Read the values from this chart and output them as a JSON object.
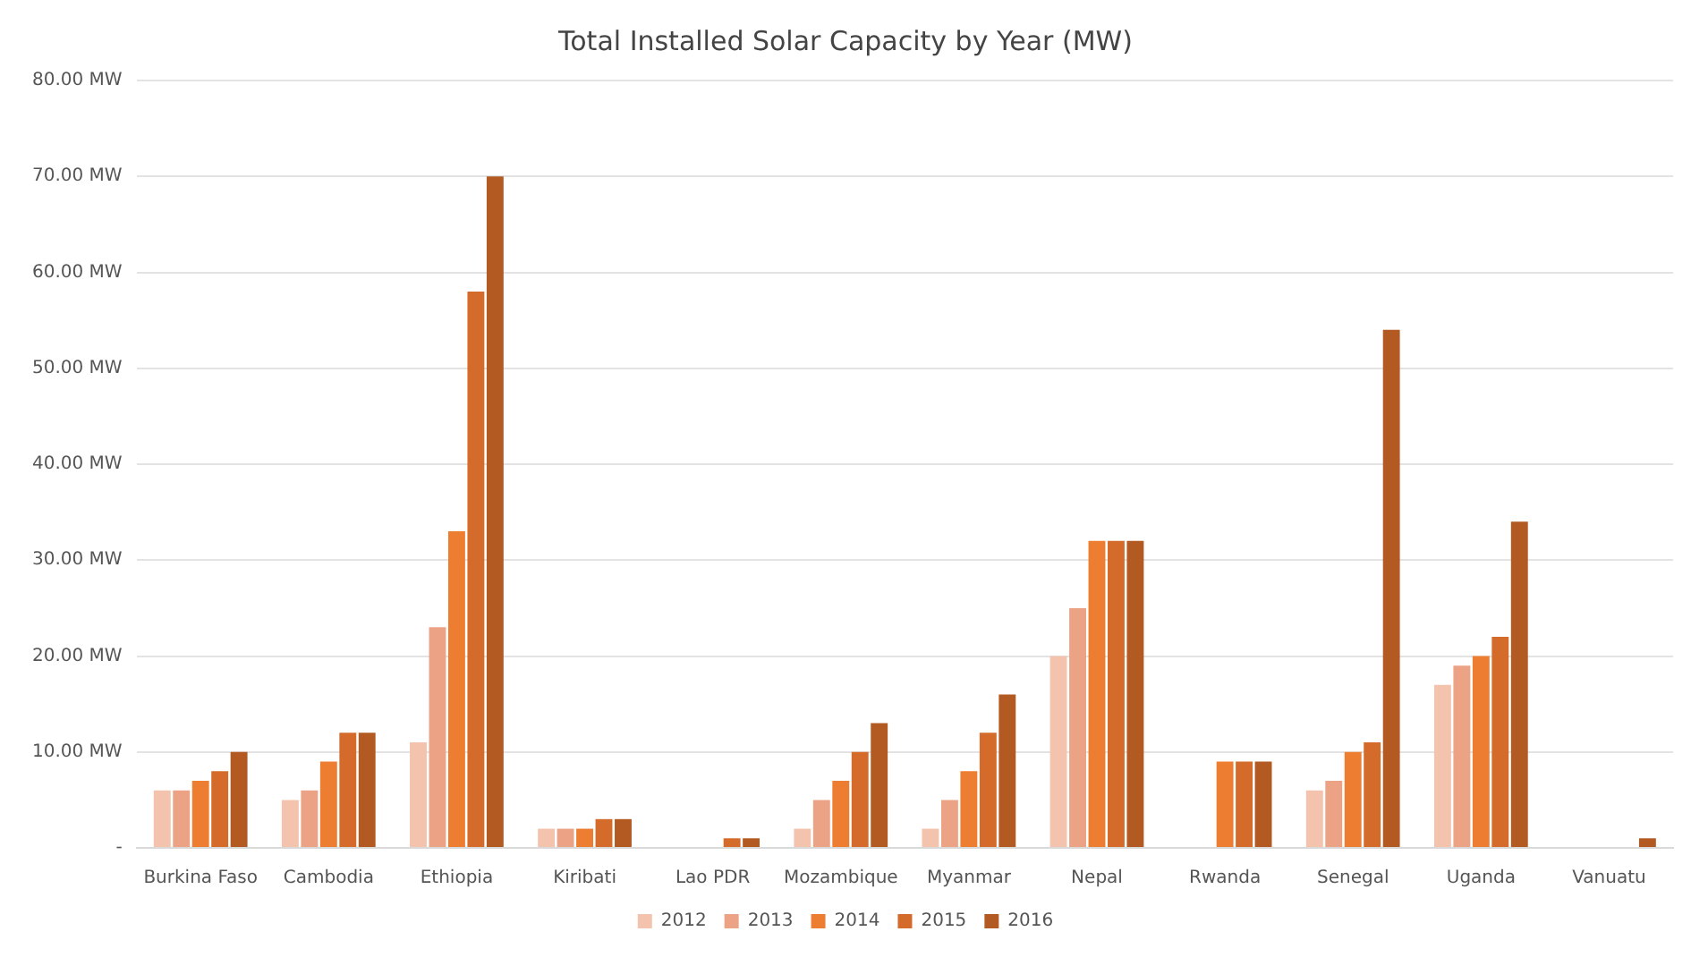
{
  "chart_data": {
    "type": "bar",
    "title": "Total Installed Solar Capacity by Year (MW)",
    "categories": [
      "Burkina Faso",
      "Cambodia",
      "Ethiopia",
      "Kiribati",
      "Lao PDR",
      "Mozambique",
      "Myanmar",
      "Nepal",
      "Rwanda",
      "Senegal",
      "Uganda",
      "Vanuatu"
    ],
    "series": [
      {
        "name": "2012",
        "color": "#f3c3ad",
        "values": [
          6,
          5,
          11,
          2,
          null,
          2,
          2,
          20,
          null,
          6,
          17,
          null
        ]
      },
      {
        "name": "2013",
        "color": "#eca285",
        "values": [
          6,
          6,
          23,
          2,
          null,
          5,
          5,
          25,
          null,
          7,
          19,
          null
        ]
      },
      {
        "name": "2014",
        "color": "#ed7d31",
        "values": [
          7,
          9,
          33,
          2,
          null,
          7,
          8,
          32,
          9,
          10,
          20,
          null
        ]
      },
      {
        "name": "2015",
        "color": "#d46b2a",
        "values": [
          8,
          12,
          58,
          3,
          1,
          10,
          12,
          32,
          9,
          11,
          22,
          null
        ]
      },
      {
        "name": "2016",
        "color": "#b25a22",
        "values": [
          10,
          12,
          70,
          3,
          1,
          13,
          16,
          32,
          9,
          54,
          34,
          1
        ]
      }
    ],
    "ylim": [
      0,
      80
    ],
    "yticks": [
      {
        "value": 0,
        "label": "-"
      },
      {
        "value": 10,
        "label": "10.00 MW"
      },
      {
        "value": 20,
        "label": "20.00 MW"
      },
      {
        "value": 30,
        "label": "30.00 MW"
      },
      {
        "value": 40,
        "label": "40.00 MW"
      },
      {
        "value": 50,
        "label": "50.00 MW"
      },
      {
        "value": 60,
        "label": "60.00 MW"
      },
      {
        "value": 70,
        "label": "70.00 MW"
      },
      {
        "value": 80,
        "label": "80.00 MW"
      }
    ],
    "grid": "y",
    "legend": "bottom"
  }
}
